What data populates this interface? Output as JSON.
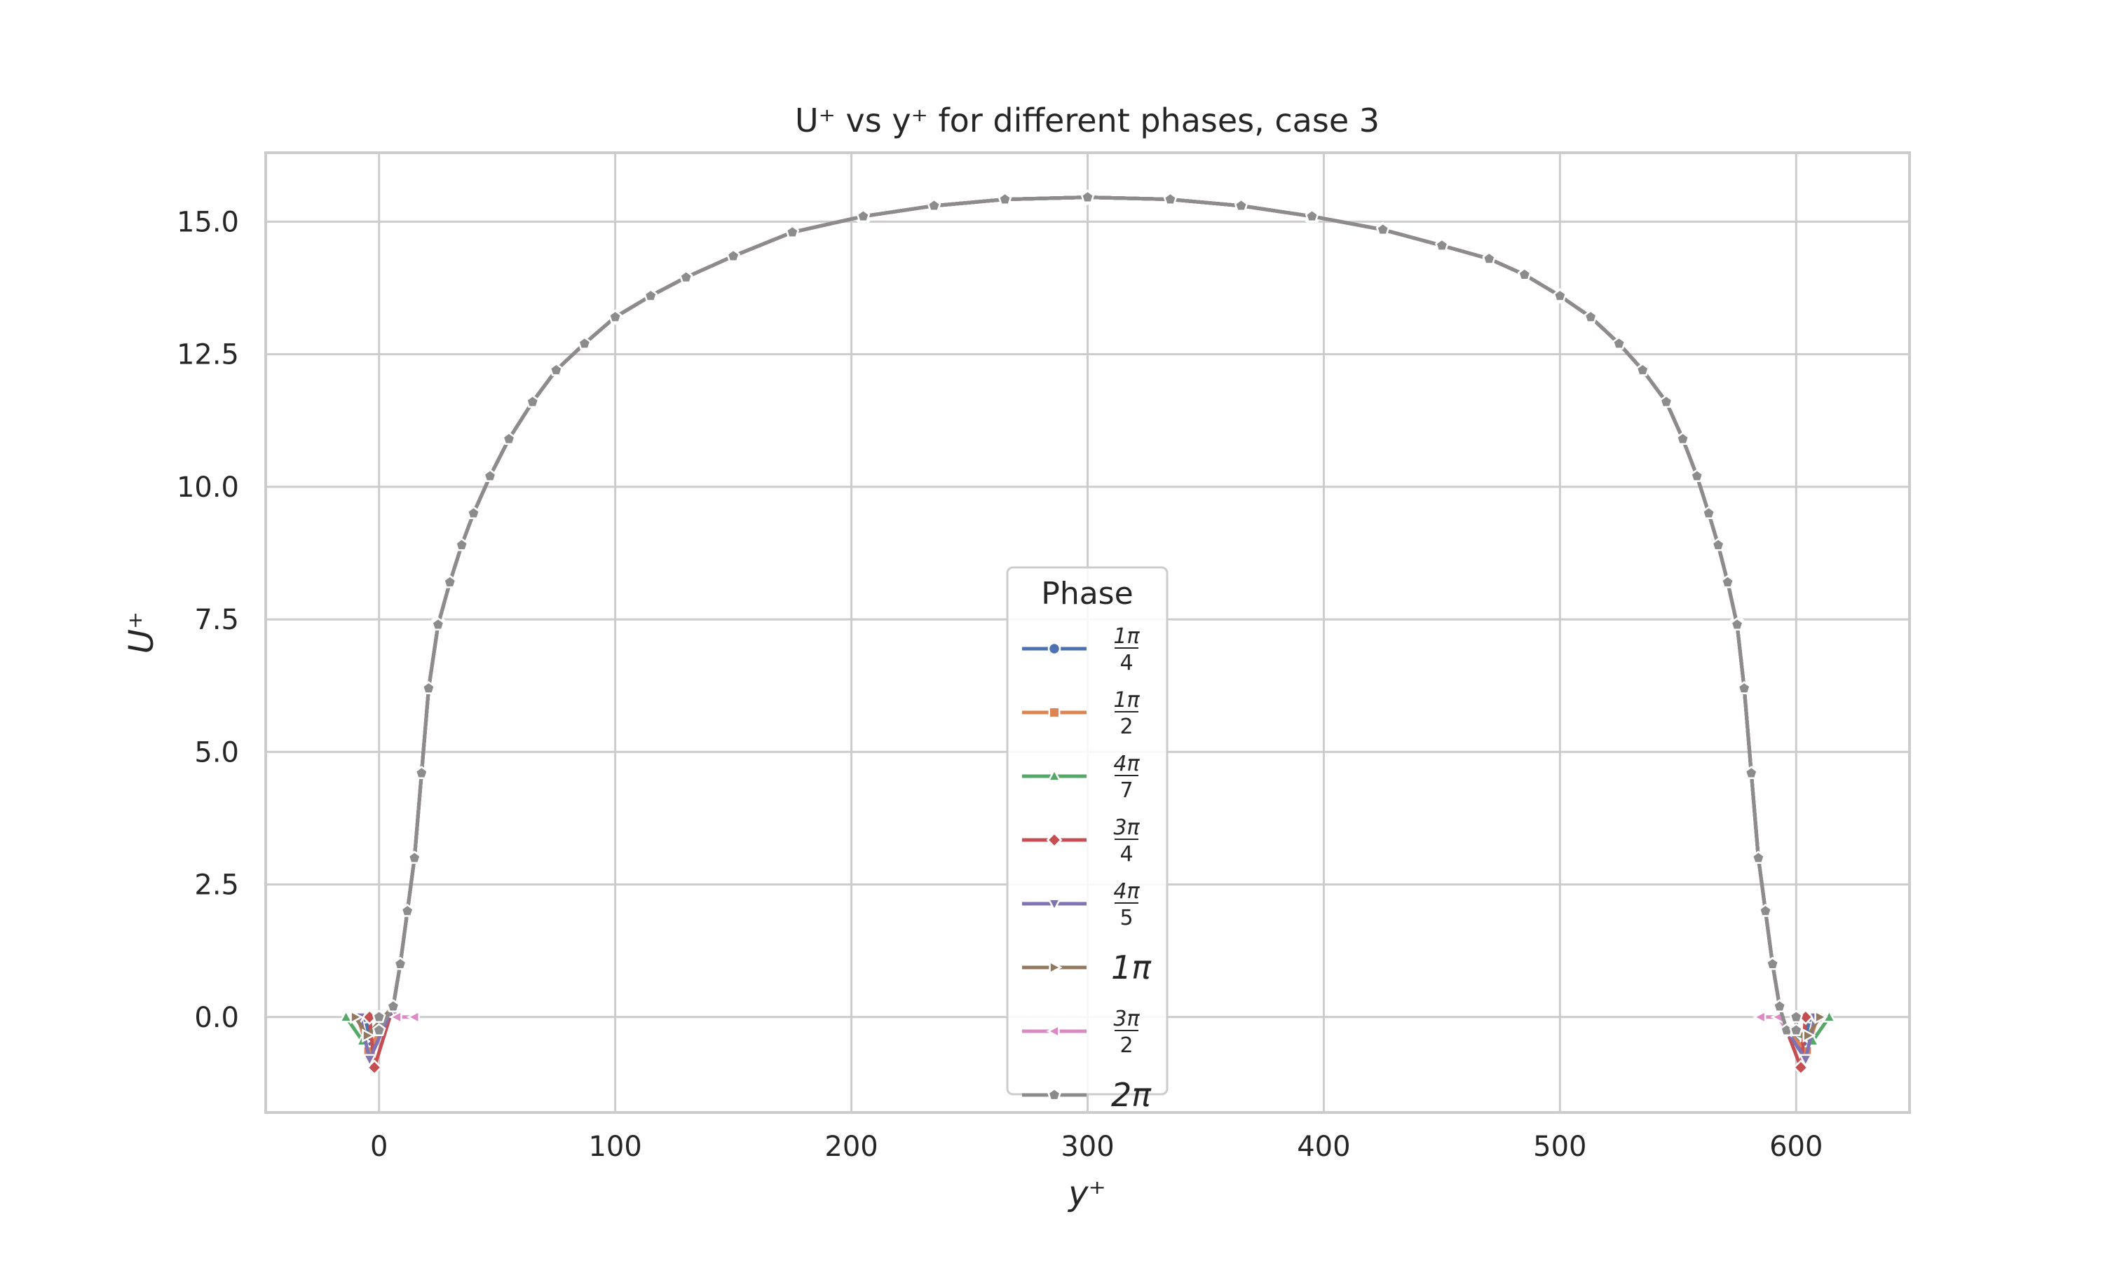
{
  "chart_data": {
    "type": "line",
    "title": "U⁺ vs y⁺ for different phases, case 3",
    "xlabel": "y⁺",
    "ylabel": "U⁺",
    "xlim": [
      -48,
      648
    ],
    "ylim": [
      -1.8,
      16.3
    ],
    "xticks": [
      0,
      100,
      200,
      300,
      400,
      500,
      600
    ],
    "yticks": [
      0.0,
      2.5,
      5.0,
      7.5,
      10.0,
      12.5,
      15.0
    ],
    "xtick_labels": [
      "0",
      "100",
      "200",
      "300",
      "400",
      "500",
      "600"
    ],
    "ytick_labels": [
      "0.0",
      "2.5",
      "5.0",
      "7.5",
      "10.0",
      "12.5",
      "15.0"
    ],
    "grid": true,
    "legend": {
      "title": "Phase",
      "placement": "lower-center"
    },
    "profile": {
      "y_plus": [
        0,
        3,
        6,
        9,
        12,
        15,
        18,
        21,
        25,
        30,
        35,
        40,
        47,
        55,
        65,
        75,
        87,
        100,
        115,
        130,
        150,
        175,
        205,
        235,
        265,
        300,
        335,
        365,
        395,
        425,
        450,
        470,
        485,
        500,
        513,
        525,
        535,
        545,
        552,
        558,
        563,
        567,
        571,
        575,
        578,
        581,
        584,
        587,
        590,
        593,
        596,
        599,
        602
      ],
      "u_plus": [
        0.0,
        -0.25,
        0.2,
        1.0,
        2.0,
        3.0,
        4.6,
        6.2,
        7.4,
        8.2,
        8.9,
        9.5,
        10.2,
        10.9,
        11.6,
        12.2,
        12.7,
        13.2,
        13.6,
        13.95,
        14.35,
        14.8,
        15.1,
        15.3,
        15.42,
        15.46,
        15.42,
        15.3,
        15.1,
        14.85,
        14.55,
        14.3,
        14.0,
        13.6,
        13.2,
        12.7,
        12.2,
        11.6,
        10.9,
        10.2,
        9.5,
        8.9,
        8.2,
        7.4,
        6.2,
        4.6,
        3.0,
        2.0,
        1.0,
        0.2,
        -0.25,
        0.0,
        0.0
      ]
    },
    "series": [
      {
        "name": "1π/4",
        "label_num": "1π",
        "label_den": "4",
        "color": "#4c72b0",
        "marker": "circle",
        "wall_offset": -6,
        "wall_min": -0.55
      },
      {
        "name": "1π/2",
        "label_num": "1π",
        "label_den": "2",
        "color": "#dd8452",
        "marker": "square",
        "wall_offset": -9,
        "wall_min": -0.65
      },
      {
        "name": "4π/7",
        "label_num": "4π",
        "label_den": "7",
        "color": "#55a868",
        "marker": "triangle-up",
        "wall_offset": -14,
        "wall_min": -0.45
      },
      {
        "name": "3π/4",
        "label_num": "3π",
        "label_den": "4",
        "color": "#c44e52",
        "marker": "diamond",
        "wall_offset": -4,
        "wall_min": -0.95
      },
      {
        "name": "4π/5",
        "label_num": "4π",
        "label_den": "5",
        "color": "#8172b3",
        "marker": "triangle-down",
        "wall_offset": -8,
        "wall_min": -0.8
      },
      {
        "name": "1π",
        "label_text": "1π",
        "color": "#937860",
        "marker": "triangle-right",
        "wall_offset": -10,
        "wall_min": -0.35
      },
      {
        "name": "3π/2",
        "label_num": "3π",
        "label_den": "2",
        "color": "#da8bc3",
        "marker": "triangle-left",
        "wall_offset": 15,
        "wall_min": 0.0
      },
      {
        "name": "2π",
        "label_text": "2π",
        "color": "#8c8c8c",
        "marker": "pentagon",
        "wall_offset": 0,
        "wall_min": -0.25
      }
    ]
  }
}
